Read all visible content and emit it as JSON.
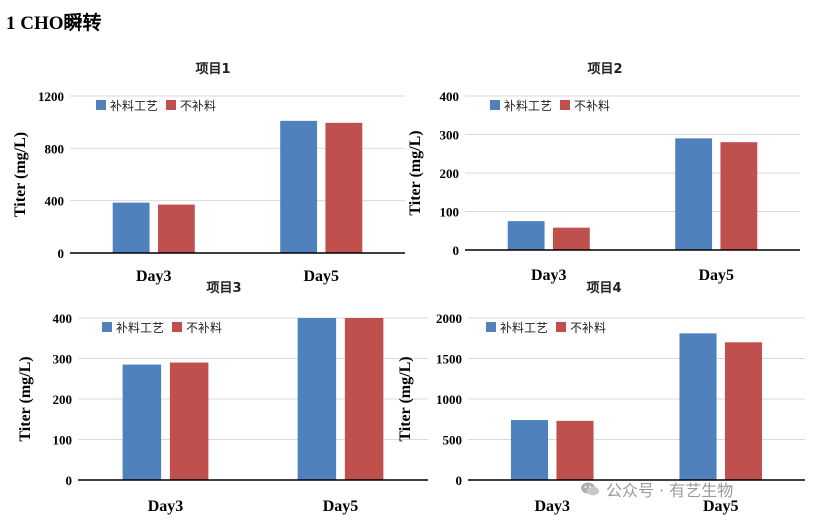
{
  "page": {
    "heading": "1  CHO瞬转"
  },
  "colors": {
    "series1": "#4f81bd",
    "series2": "#c0504d",
    "grid": "#d9d9d9",
    "axis": "#000000"
  },
  "chart_data": [
    {
      "type": "bar",
      "title": "项目1",
      "ylabel": "Titer (mg/L)",
      "categories": [
        "Day3",
        "Day5"
      ],
      "ylim": [
        0,
        1200
      ],
      "yticks": [
        0,
        400,
        800,
        1200
      ],
      "legend": "top-left",
      "series": [
        {
          "name": "补料工艺",
          "values": [
            385,
            1010
          ]
        },
        {
          "name": "不补料",
          "values": [
            370,
            995
          ]
        }
      ]
    },
    {
      "type": "bar",
      "title": "项目2",
      "ylabel": "Titer (mg/L)",
      "categories": [
        "Day3",
        "Day5"
      ],
      "ylim": [
        0,
        400
      ],
      "yticks": [
        0,
        100,
        200,
        300,
        400
      ],
      "legend": "top-left",
      "series": [
        {
          "name": "补料工艺",
          "values": [
            75,
            290
          ]
        },
        {
          "name": "不补料",
          "values": [
            58,
            280
          ]
        }
      ]
    },
    {
      "type": "bar",
      "title": "项目3",
      "ylabel": "Titer (mg/L)",
      "categories": [
        "Day3",
        "Day5"
      ],
      "ylim": [
        0,
        400
      ],
      "yticks": [
        0,
        100,
        200,
        300,
        400
      ],
      "legend": "top-left",
      "series": [
        {
          "name": "补料工艺",
          "values": [
            285,
            400
          ]
        },
        {
          "name": "不补料",
          "values": [
            290,
            400
          ]
        }
      ]
    },
    {
      "type": "bar",
      "title": "项目4",
      "ylabel": "Titer (mg/L)",
      "categories": [
        "Day3",
        "Day5"
      ],
      "ylim": [
        0,
        2000
      ],
      "yticks": [
        0,
        500,
        1000,
        1500,
        2000
      ],
      "legend": "top-left",
      "series": [
        {
          "name": "补料工艺",
          "values": [
            740,
            1810
          ]
        },
        {
          "name": "不补料",
          "values": [
            730,
            1700
          ]
        }
      ]
    }
  ],
  "watermark": {
    "text": "公众号 · 有艺生物",
    "icon": "wechat-icon"
  }
}
